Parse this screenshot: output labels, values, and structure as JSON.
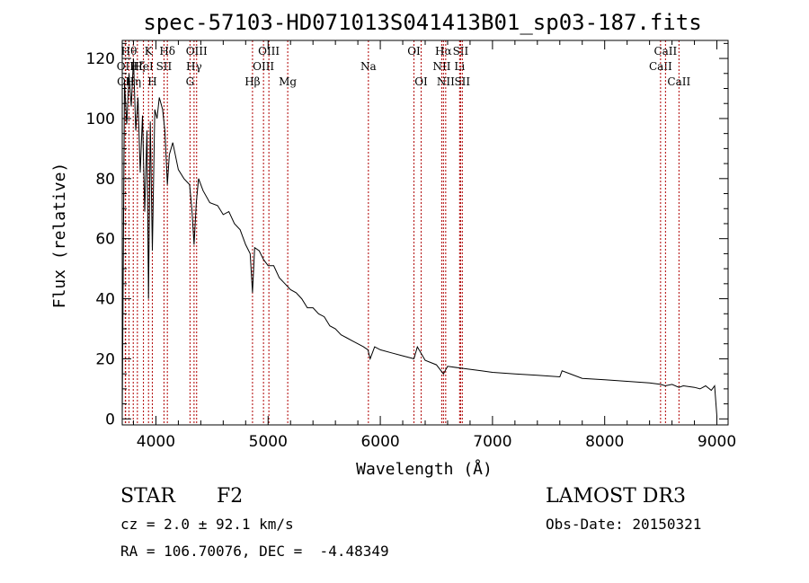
{
  "chart_data": {
    "type": "line",
    "title": "spec-57103-HD071013S041413B01_sp03-187.fits",
    "xlabel": "Wavelength (Å)",
    "ylabel": "Flux (relative)",
    "xlim": [
      3700,
      9100
    ],
    "ylim": [
      -2,
      126
    ],
    "xticks": [
      4000,
      5000,
      6000,
      7000,
      8000,
      9000
    ],
    "xtick_labels": [
      "4000",
      "5000",
      "6000",
      "7000",
      "8000",
      "9000"
    ],
    "yticks": [
      0,
      20,
      40,
      60,
      80,
      100,
      120
    ],
    "ytick_labels": [
      "0",
      "20",
      "40",
      "60",
      "80",
      "100",
      "120"
    ],
    "series": [
      {
        "name": "flux",
        "x": [
          3700,
          3720,
          3740,
          3760,
          3780,
          3800,
          3820,
          3840,
          3860,
          3880,
          3900,
          3920,
          3934,
          3950,
          3968,
          3990,
          4010,
          4030,
          4060,
          4080,
          4102,
          4120,
          4150,
          4200,
          4250,
          4300,
          4320,
          4340,
          4360,
          4380,
          4420,
          4480,
          4550,
          4600,
          4650,
          4700,
          4750,
          4800,
          4840,
          4861,
          4880,
          4920,
          4960,
          5000,
          5050,
          5100,
          5150,
          5200,
          5250,
          5300,
          5350,
          5400,
          5450,
          5500,
          5550,
          5600,
          5650,
          5700,
          5750,
          5800,
          5850,
          5890,
          5910,
          5950,
          6000,
          6100,
          6200,
          6300,
          6330,
          6400,
          6500,
          6563,
          6600,
          6700,
          6800,
          6900,
          7000,
          7200,
          7400,
          7600,
          7620,
          7800,
          8000,
          8200,
          8400,
          8500,
          8540,
          8600,
          8662,
          8700,
          8800,
          8850,
          8900,
          8950,
          8980,
          9000
        ],
        "y": [
          1,
          112,
          98,
          115,
          104,
          120,
          96,
          107,
          82,
          101,
          69,
          96,
          40,
          99,
          56,
          103,
          100,
          107,
          103,
          96,
          78,
          88,
          92,
          83,
          80,
          78,
          70,
          58,
          72,
          80,
          76,
          72,
          71,
          68,
          69,
          65,
          63,
          58,
          55,
          42,
          57,
          56,
          53,
          51,
          51,
          47,
          45,
          43,
          42,
          40,
          37,
          37,
          35,
          34,
          31,
          30,
          28,
          27,
          26,
          25,
          24,
          23,
          20,
          24,
          23,
          22,
          21,
          20,
          24,
          19.5,
          18,
          15,
          17.5,
          17,
          16.5,
          16,
          15.5,
          15,
          14.5,
          14,
          16,
          13.5,
          13,
          12.5,
          12,
          11.5,
          11,
          11.5,
          10.5,
          11,
          10.5,
          10,
          11,
          9.5,
          11,
          1
        ]
      }
    ],
    "line_markers": [
      {
        "wavelength": 3727,
        "label": "OII",
        "row": 2
      },
      {
        "wavelength": 3730,
        "label": "OII",
        "row": 3
      },
      {
        "wavelength": 3760,
        "label": "Hθ",
        "row": 1
      },
      {
        "wavelength": 3798,
        "label": "Hη",
        "row": 3
      },
      {
        "wavelength": 3835,
        "label": "Hζ",
        "row": 2
      },
      {
        "wavelength": 3889,
        "label": "HeI",
        "row": 2
      },
      {
        "wavelength": 3934,
        "label": "K",
        "row": 1
      },
      {
        "wavelength": 3968,
        "label": "H",
        "row": 3
      },
      {
        "wavelength": 4072,
        "label": "SII",
        "row": 2
      },
      {
        "wavelength": 4102,
        "label": "Hδ",
        "row": 1
      },
      {
        "wavelength": 4304,
        "label": "G",
        "row": 3
      },
      {
        "wavelength": 4340,
        "label": "Hγ",
        "row": 2
      },
      {
        "wavelength": 4363,
        "label": "OIII",
        "row": 1
      },
      {
        "wavelength": 4861,
        "label": "Hβ",
        "row": 3
      },
      {
        "wavelength": 4959,
        "label": "OIII",
        "row": 2
      },
      {
        "wavelength": 5007,
        "label": "OIII",
        "row": 1
      },
      {
        "wavelength": 5175,
        "label": "Mg",
        "row": 3
      },
      {
        "wavelength": 5894,
        "label": "Na",
        "row": 2
      },
      {
        "wavelength": 6300,
        "label": "OI",
        "row": 1
      },
      {
        "wavelength": 6364,
        "label": "OI",
        "row": 3
      },
      {
        "wavelength": 6548,
        "label": "NII",
        "row": 2
      },
      {
        "wavelength": 6563,
        "label": "Hα",
        "row": 1
      },
      {
        "wavelength": 6583,
        "label": "NII",
        "row": 3
      },
      {
        "wavelength": 6707,
        "label": "Li",
        "row": 2
      },
      {
        "wavelength": 6716,
        "label": "SII",
        "row": 1
      },
      {
        "wavelength": 6731,
        "label": "SII",
        "row": 3
      },
      {
        "wavelength": 8498,
        "label": "CaII",
        "row": 2
      },
      {
        "wavelength": 8542,
        "label": "CaII",
        "row": 1
      },
      {
        "wavelength": 8662,
        "label": "CaII",
        "row": 3
      }
    ]
  },
  "info": {
    "class": "STAR",
    "subclass": "F2",
    "survey": "LAMOST DR3",
    "redshift": "cz = 2.0 ± 92.1 km/s",
    "obs_date": "Obs-Date: 20150321",
    "coords": "RA = 106.70076, DEC =  -4.48349"
  }
}
